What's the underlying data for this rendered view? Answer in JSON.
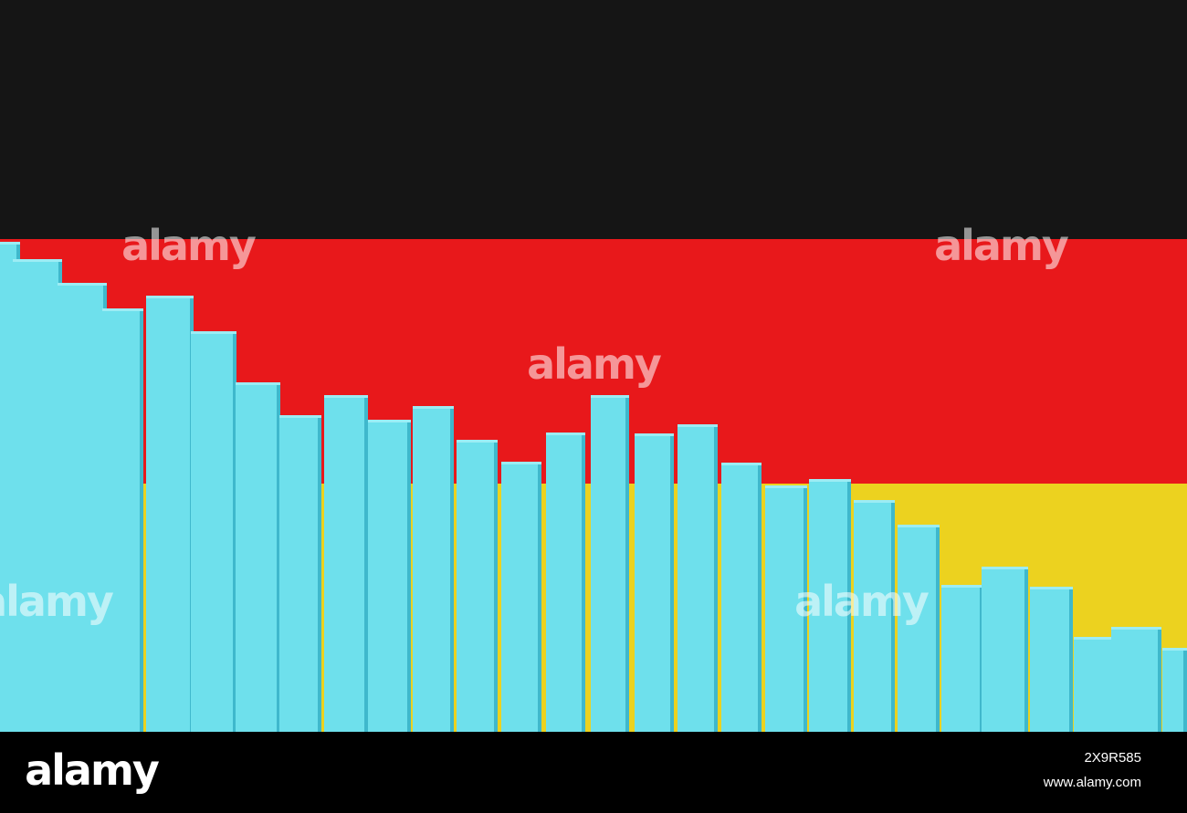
{
  "watermark": "alamy",
  "footer": {
    "logo": "alamy",
    "image_id": "2X9R585",
    "url": "www.alamy.com"
  }
}
